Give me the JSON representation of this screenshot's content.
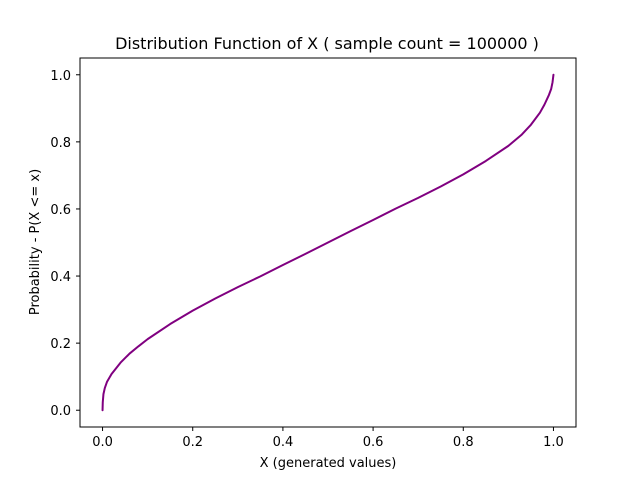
{
  "chart_data": {
    "type": "line",
    "title": "Distribution Function of X ( sample count = 100000 )",
    "xlabel": "X (generated values)",
    "ylabel": "Probability - P(X <= x)",
    "xlim": [
      -0.05,
      1.05
    ],
    "ylim": [
      -0.05,
      1.05
    ],
    "xticks": [
      "0.0",
      "0.2",
      "0.4",
      "0.6",
      "0.8",
      "1.0"
    ],
    "yticks": [
      "0.0",
      "0.2",
      "0.4",
      "0.6",
      "0.8",
      "1.0"
    ],
    "grid": false,
    "series": [
      {
        "color": "#800080",
        "x": [
          0.0,
          0.0005,
          0.002,
          0.005,
          0.01,
          0.02,
          0.04,
          0.06,
          0.08,
          0.1,
          0.15,
          0.2,
          0.25,
          0.3,
          0.35,
          0.4,
          0.45,
          0.5,
          0.55,
          0.6,
          0.65,
          0.7,
          0.75,
          0.8,
          0.85,
          0.9,
          0.93,
          0.95,
          0.97,
          0.98,
          0.99,
          0.995,
          0.998,
          1.0
        ],
        "y": [
          0.0,
          0.024,
          0.048,
          0.066,
          0.085,
          0.108,
          0.142,
          0.169,
          0.191,
          0.212,
          0.257,
          0.297,
          0.333,
          0.367,
          0.399,
          0.433,
          0.466,
          0.5,
          0.534,
          0.567,
          0.601,
          0.633,
          0.667,
          0.703,
          0.743,
          0.788,
          0.822,
          0.851,
          0.887,
          0.911,
          0.94,
          0.958,
          0.978,
          1.0
        ]
      }
    ]
  }
}
